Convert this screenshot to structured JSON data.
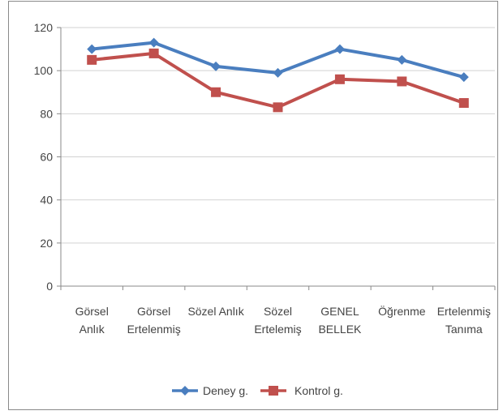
{
  "chart_data": {
    "type": "line",
    "title": "",
    "xlabel": "",
    "ylabel": "",
    "ylim": [
      0,
      120
    ],
    "yticks": [
      0,
      20,
      40,
      60,
      80,
      100,
      120
    ],
    "grid": true,
    "legend_position": "bottom",
    "categories": [
      [
        "Görsel",
        "Anlık"
      ],
      [
        "Görsel",
        "Ertelenmiş"
      ],
      [
        "Sözel Anlık"
      ],
      [
        "Sözel",
        "Ertelemiş"
      ],
      [
        "GENEL",
        "BELLEK"
      ],
      [
        "Öğrenme"
      ],
      [
        "Ertelenmiş",
        "Tanıma"
      ]
    ],
    "series": [
      {
        "name": "Deney g.",
        "color": "#4a7ebf",
        "marker": "diamond",
        "values": [
          110,
          113,
          102,
          99,
          110,
          105,
          97
        ]
      },
      {
        "name": "Kontrol g.",
        "color": "#c0504d",
        "marker": "square",
        "values": [
          105,
          108,
          90,
          83,
          96,
          95,
          85
        ]
      }
    ]
  }
}
